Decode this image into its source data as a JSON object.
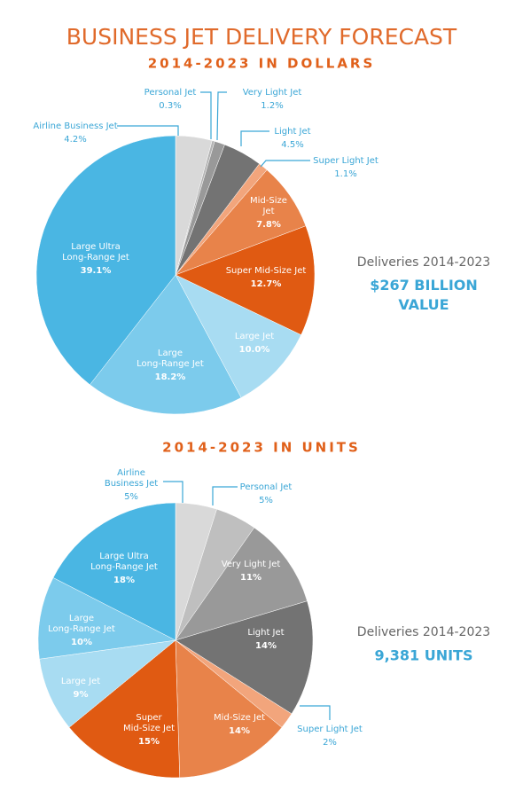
{
  "title": "BUSINESS JET DELIVERY FORECAST",
  "chart_data": [
    {
      "type": "pie",
      "subtitle": "2014-2023 IN DOLLARS",
      "categories": [
        "Airline Business Jet",
        "Personal Jet",
        "Very Light Jet",
        "Light Jet",
        "Super Light Jet",
        "Mid-Size\nJet",
        "Super Mid-Size Jet",
        "Large Jet",
        "Large\nLong-Range Jet",
        "Large Ultra\nLong-Range Jet"
      ],
      "values": [
        4.2,
        0.3,
        1.2,
        4.5,
        1.1,
        7.8,
        12.7,
        10.0,
        18.2,
        39.1
      ],
      "value_labels": [
        "4.2%",
        "0.3%",
        "1.2%",
        "4.5%",
        "1.1%",
        "7.8%",
        "12.7%",
        "10.0%",
        "18.2%",
        "39.1%"
      ],
      "colors": [
        "#d9d9d9",
        "#b3b3b3",
        "#999999",
        "#737373",
        "#f2a57c",
        "#e8834a",
        "#e05a12",
        "#a8dcf2",
        "#7ccbec",
        "#4ab6e3"
      ],
      "note_label": "Deliveries 2014-2023",
      "note_value": "$267 BILLION\nVALUE"
    },
    {
      "type": "pie",
      "subtitle": "2014-2023 IN UNITS",
      "categories": [
        "Airline\nBusiness Jet",
        "Personal Jet",
        "Very Light Jet",
        "Light Jet",
        "Super Light Jet",
        "Mid-Size Jet",
        "Super\nMid-Size Jet",
        "Large Jet",
        "Large\nLong-Range Jet",
        "Large Ultra\nLong-Range Jet"
      ],
      "values": [
        5,
        5,
        11,
        14,
        2,
        14,
        15,
        9,
        10,
        18
      ],
      "value_labels": [
        "5%",
        "5%",
        "11%",
        "14%",
        "2%",
        "14%",
        "15%",
        "9%",
        "10%",
        "18%"
      ],
      "colors": [
        "#d9d9d9",
        "#bfbfbf",
        "#999999",
        "#737373",
        "#f2a57c",
        "#e8834a",
        "#e05a12",
        "#a8dcf2",
        "#7ccbec",
        "#4ab6e3"
      ],
      "note_label": "Deliveries 2014-2023",
      "note_value": "9,381 UNITS"
    }
  ]
}
